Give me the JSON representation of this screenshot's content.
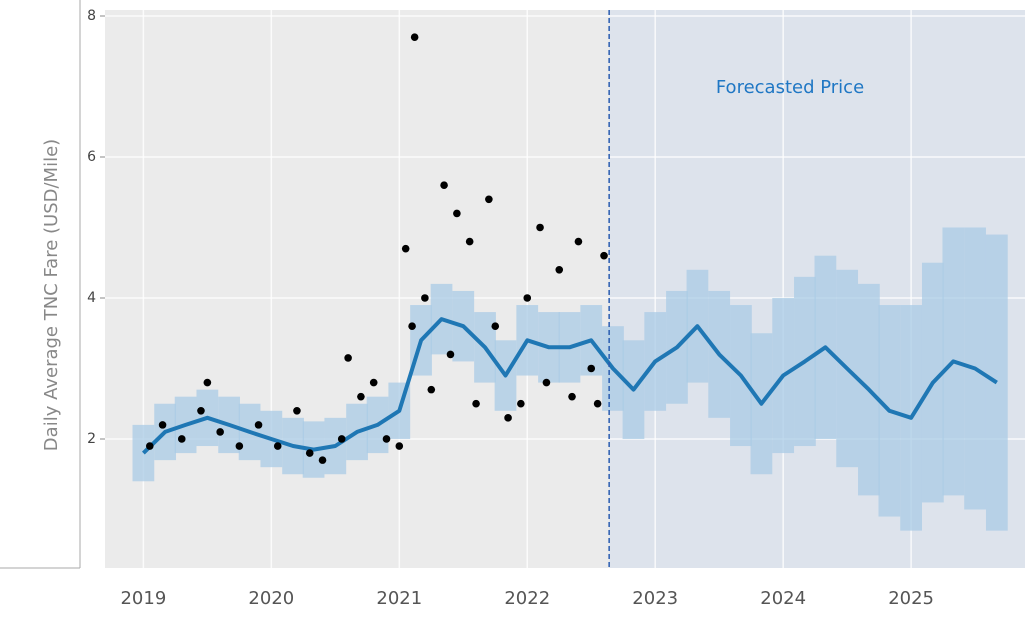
{
  "chart_data": {
    "type": "line",
    "ylabel": "Daily Average TNC Fare (USD/Mile)",
    "annotation": "Forecasted Price",
    "xlim": [
      2018.7,
      2025.89
    ],
    "ylim": [
      0.17,
      8.085
    ],
    "xticks": [
      2019,
      2020,
      2021,
      2022,
      2023,
      2024,
      2025
    ],
    "yticks": [
      2,
      4,
      6,
      8
    ],
    "grid": true,
    "forecast_start": 2022.64,
    "x": [
      2019,
      2019.17,
      2019.33,
      2019.5,
      2019.67,
      2019.83,
      2020,
      2020.17,
      2020.33,
      2020.5,
      2020.67,
      2020.83,
      2021,
      2021.17,
      2021.33,
      2021.5,
      2021.67,
      2021.83,
      2022,
      2022.17,
      2022.33,
      2022.5,
      2022.67,
      2022.83,
      2023,
      2023.17,
      2023.33,
      2023.5,
      2023.67,
      2023.83,
      2024,
      2024.17,
      2024.33,
      2024.5,
      2024.67,
      2024.83,
      2025,
      2025.17,
      2025.33,
      2025.5,
      2025.67
    ],
    "series": [
      {
        "color": "#1f77b4",
        "band_color": "#a9cbe6",
        "values": [
          1.8,
          2.1,
          2.2,
          2.3,
          2.2,
          2.1,
          2.0,
          1.9,
          1.85,
          1.9,
          2.1,
          2.2,
          2.4,
          3.4,
          3.7,
          3.6,
          3.3,
          2.9,
          3.4,
          3.3,
          3.3,
          3.4,
          3.0,
          2.7,
          3.1,
          3.3,
          3.6,
          3.2,
          2.9,
          2.5,
          2.9,
          3.1,
          3.3,
          3.0,
          2.7,
          2.4,
          2.3,
          2.8,
          3.1,
          3.0,
          2.8
        ],
        "lower": [
          1.4,
          1.7,
          1.8,
          1.9,
          1.8,
          1.7,
          1.6,
          1.5,
          1.45,
          1.5,
          1.7,
          1.8,
          2.0,
          2.9,
          3.2,
          3.1,
          2.8,
          2.4,
          2.9,
          2.8,
          2.8,
          2.9,
          2.4,
          2.0,
          2.4,
          2.5,
          2.8,
          2.3,
          1.9,
          1.5,
          1.8,
          1.9,
          2.0,
          1.6,
          1.2,
          0.9,
          0.7,
          1.1,
          1.2,
          1.0,
          0.7
        ],
        "upper": [
          2.2,
          2.5,
          2.6,
          2.7,
          2.6,
          2.5,
          2.4,
          2.3,
          2.25,
          2.3,
          2.5,
          2.6,
          2.8,
          3.9,
          4.2,
          4.1,
          3.8,
          3.4,
          3.9,
          3.8,
          3.8,
          3.9,
          3.6,
          3.4,
          3.8,
          4.1,
          4.4,
          4.1,
          3.9,
          3.5,
          4.0,
          4.3,
          4.6,
          4.4,
          4.2,
          3.9,
          3.9,
          4.5,
          5.0,
          5.0,
          4.9
        ]
      }
    ],
    "points": {
      "color": "#000000",
      "x": [
        2019.05,
        2019.15,
        2019.3,
        2019.45,
        2019.5,
        2019.6,
        2019.75,
        2019.9,
        2020.05,
        2020.2,
        2020.3,
        2020.4,
        2020.55,
        2020.6,
        2020.7,
        2020.8,
        2020.9,
        2021.0,
        2021.05,
        2021.1,
        2021.12,
        2021.2,
        2021.25,
        2021.35,
        2021.4,
        2021.45,
        2021.55,
        2021.6,
        2021.7,
        2021.75,
        2021.85,
        2021.95,
        2022.0,
        2022.1,
        2022.15,
        2022.25,
        2022.35,
        2022.4,
        2022.5,
        2022.55,
        2022.6
      ],
      "values": [
        1.9,
        2.2,
        2.0,
        2.4,
        2.8,
        2.1,
        1.9,
        2.2,
        1.9,
        2.4,
        1.8,
        1.7,
        2.0,
        3.15,
        2.6,
        2.8,
        2.0,
        1.9,
        4.7,
        3.6,
        7.7,
        4.0,
        2.7,
        5.6,
        3.2,
        5.2,
        4.8,
        2.5,
        5.4,
        3.6,
        2.3,
        2.5,
        4.0,
        5.0,
        2.8,
        4.4,
        2.6,
        4.8,
        3.0,
        2.5,
        4.6
      ]
    }
  }
}
